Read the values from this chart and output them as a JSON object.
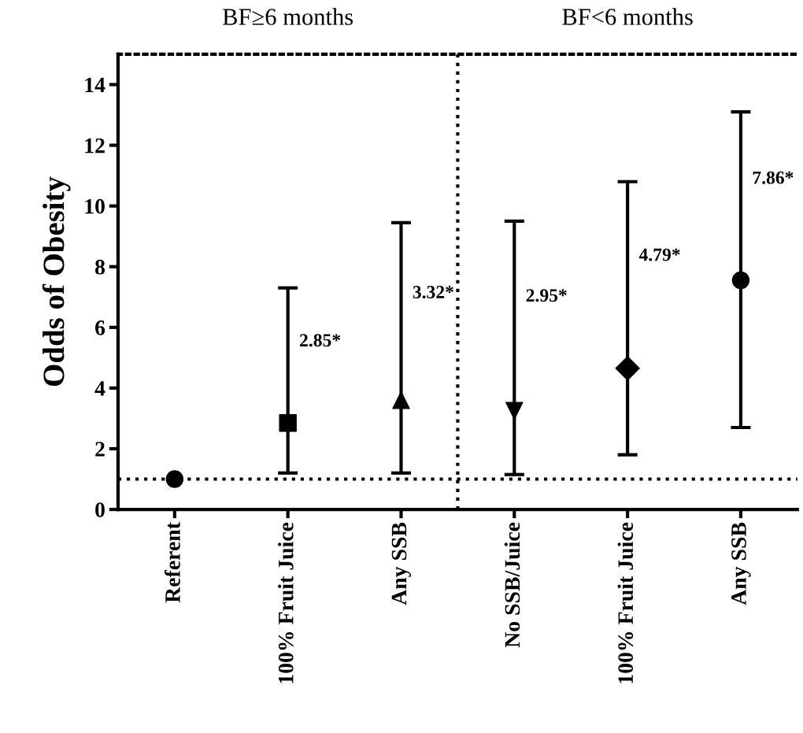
{
  "chart_data": {
    "type": "scatter",
    "ylabel": "Odds of Obesity",
    "categories": [
      "Referent",
      "100% Fruit Juice",
      "Any SSB",
      "No SSB/Juice",
      "100% Fruit Juice",
      "Any SSB"
    ],
    "series": [
      {
        "color": "#000000",
        "marker": "circle",
        "values": [
          1,
          null,
          null,
          null,
          null,
          null
        ],
        "errors": [
          null,
          null,
          null,
          null,
          null,
          null
        ]
      },
      {
        "color": "#000000",
        "marker": "square",
        "values": [
          null,
          2.85,
          null,
          null,
          null,
          null
        ],
        "errors": [
          null,
          [
            1.2,
            7.3
          ],
          null,
          null,
          null,
          null
        ]
      },
      {
        "color": "#000000",
        "marker": "triangle",
        "values": [
          null,
          null,
          3.6,
          null,
          null,
          null
        ],
        "errors": [
          null,
          null,
          [
            1.2,
            9.45
          ],
          null,
          null,
          null
        ]
      },
      {
        "color": "#000000",
        "marker": "triangle_down",
        "values": [
          null,
          null,
          null,
          3.25,
          null,
          null
        ],
        "errors": [
          null,
          null,
          null,
          [
            1.15,
            9.5
          ],
          null,
          null
        ]
      },
      {
        "color": "#000000",
        "marker": "diamond",
        "values": [
          null,
          null,
          null,
          null,
          4.65,
          null
        ],
        "errors": [
          null,
          null,
          null,
          null,
          [
            1.8,
            10.8
          ],
          null
        ]
      },
      {
        "color": "#000000",
        "marker": "circle",
        "values": [
          null,
          null,
          null,
          null,
          null,
          7.55
        ],
        "errors": [
          null,
          null,
          null,
          null,
          null,
          [
            2.7,
            13.1
          ]
        ]
      }
    ],
    "ylim": [
      0,
      15
    ],
    "yticks": [
      0,
      2,
      4,
      6,
      8,
      10,
      12,
      14
    ],
    "grid": false,
    "legend": false,
    "ref_lines": [
      {
        "axis": "y",
        "value": 1,
        "line_style": "dotted",
        "color": "#000000"
      }
    ],
    "annotations": [
      "BF≥6 months",
      "BF<6 months",
      "2.85*",
      "3.32*",
      "2.95*",
      "4.79*",
      "7.86*"
    ]
  }
}
